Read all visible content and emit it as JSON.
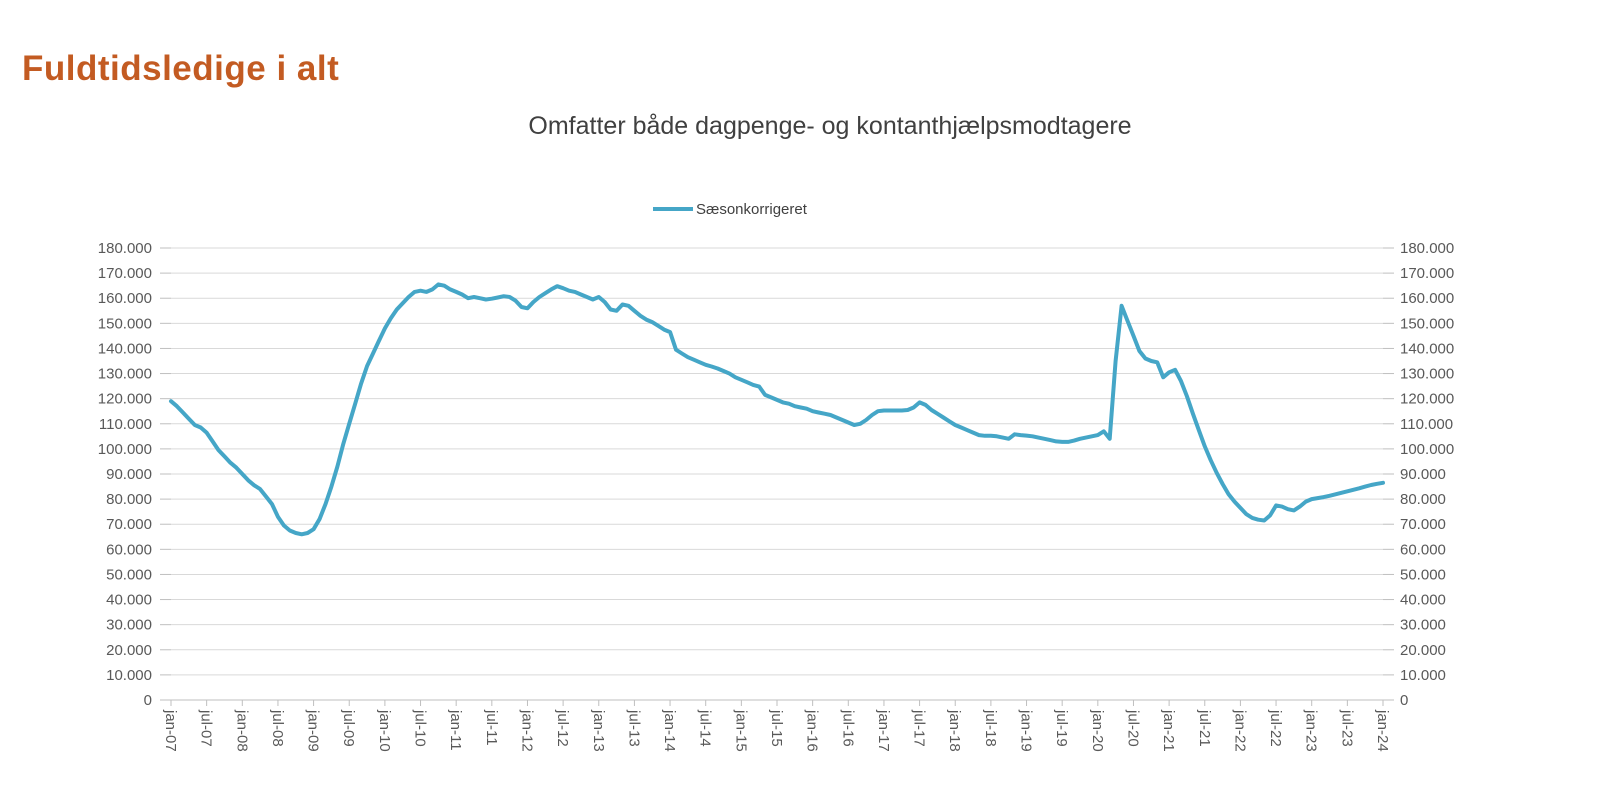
{
  "page": {
    "title": "Fuldtidsledige i alt"
  },
  "legend": {
    "label": "Sæsonkorrigeret"
  },
  "colors": {
    "title": "#C35B22",
    "line": "#45A6C7",
    "grid": "#D9D9D9",
    "axis": "#BFBFBF",
    "tick_text": "#595959",
    "subtitle_text": "#404040"
  },
  "chart_data": {
    "type": "line",
    "title": "Omfatter både dagpenge- og kontanthjælpsmodtagere",
    "xlabel": "",
    "ylabel": "",
    "ylim": [
      0,
      180000
    ],
    "grid": true,
    "legend_position": "top",
    "x_tick_every_months": 6,
    "x_tick_labels": [
      "jan-07",
      "jul-07",
      "jan-08",
      "jul-08",
      "jan-09",
      "jul-09",
      "jan-10",
      "jul-10",
      "jan-11",
      "jul-11",
      "jan-12",
      "jul-12",
      "jan-13",
      "jul-13",
      "jan-14",
      "jul-14",
      "jan-15",
      "jul-15",
      "jan-16",
      "jul-16",
      "jan-17",
      "jul-17",
      "jan-18",
      "jul-18",
      "jan-19",
      "jul-19",
      "jan-20",
      "jul-20",
      "jan-21",
      "jul-21",
      "jan-22",
      "jul-22",
      "jan-23",
      "jul-23",
      "jan-24"
    ],
    "y_ticks": [
      0,
      10000,
      20000,
      30000,
      40000,
      50000,
      60000,
      70000,
      80000,
      90000,
      100000,
      110000,
      120000,
      130000,
      140000,
      150000,
      160000,
      170000,
      180000
    ],
    "y_tick_labels": [
      "0",
      "10.000",
      "20.000",
      "30.000",
      "40.000",
      "50.000",
      "60.000",
      "70.000",
      "80.000",
      "90.000",
      "100.000",
      "110.000",
      "120.000",
      "130.000",
      "140.000",
      "150.000",
      "160.000",
      "170.000",
      "180.000"
    ],
    "series": [
      {
        "name": "Sæsonkorrigeret",
        "color": "#45A6C7",
        "x_start": "jan-07",
        "x_end": "jan-24",
        "x_unit": "month",
        "values": [
          119000,
          117000,
          114500,
          112000,
          109500,
          108500,
          106500,
          103000,
          99500,
          97000,
          94500,
          92500,
          90000,
          87500,
          85500,
          84000,
          81000,
          78000,
          73000,
          69500,
          67500,
          66500,
          66000,
          66500,
          68000,
          72000,
          78000,
          85000,
          93000,
          102000,
          110000,
          118000,
          126000,
          133000,
          138000,
          143000,
          148000,
          152000,
          155500,
          158000,
          160500,
          162500,
          163000,
          162500,
          163500,
          165500,
          165000,
          163500,
          162500,
          161500,
          160000,
          160500,
          160000,
          159500,
          159800,
          160300,
          160800,
          160500,
          159000,
          156500,
          156000,
          158500,
          160500,
          162000,
          163500,
          164800,
          164000,
          163000,
          162500,
          161500,
          160500,
          159500,
          160500,
          158500,
          155500,
          155000,
          157500,
          157000,
          155000,
          153000,
          151500,
          150500,
          149000,
          147500,
          146500,
          139500,
          138000,
          136500,
          135500,
          134500,
          133500,
          132800,
          132000,
          131000,
          130000,
          128500,
          127500,
          126500,
          125500,
          124800,
          121500,
          120500,
          119500,
          118500,
          118000,
          117000,
          116500,
          116000,
          115000,
          114500,
          114000,
          113500,
          112500,
          111500,
          110500,
          109500,
          110000,
          111500,
          113500,
          115000,
          115300,
          115300,
          115300,
          115300,
          115500,
          116500,
          118500,
          117500,
          115500,
          114000,
          112500,
          111000,
          109500,
          108500,
          107500,
          106500,
          105500,
          105200,
          105200,
          105000,
          104500,
          104000,
          105800,
          105500,
          105300,
          105000,
          104500,
          104000,
          103500,
          103000,
          102800,
          102800,
          103300,
          104000,
          104500,
          105000,
          105500,
          107000,
          104000,
          135000,
          157000,
          151000,
          145000,
          139000,
          136000,
          135000,
          134500,
          128500,
          130500,
          131500,
          127000,
          121000,
          114000,
          107500,
          101000,
          95500,
          90500,
          86000,
          82000,
          79000,
          76500,
          74000,
          72500,
          71800,
          71500,
          73500,
          77500,
          77000,
          76000,
          75500,
          77000,
          79000,
          80000,
          80400,
          80800,
          81300,
          81900,
          82500,
          83100,
          83700,
          84300,
          85000,
          85600,
          86100,
          86500
        ]
      }
    ]
  }
}
